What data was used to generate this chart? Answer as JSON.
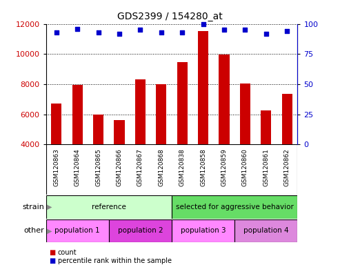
{
  "title": "GDS2399 / 154280_at",
  "samples": [
    "GSM120863",
    "GSM120864",
    "GSM120865",
    "GSM120866",
    "GSM120867",
    "GSM120868",
    "GSM120838",
    "GSM120858",
    "GSM120859",
    "GSM120860",
    "GSM120861",
    "GSM120862"
  ],
  "counts": [
    6700,
    7950,
    6000,
    5600,
    8300,
    8000,
    9450,
    11500,
    9950,
    8050,
    6250,
    7350
  ],
  "percentile_ranks": [
    93,
    96,
    93,
    92,
    95,
    93,
    93,
    100,
    95,
    95,
    92,
    94
  ],
  "ylim_left": [
    4000,
    12000
  ],
  "ylim_right": [
    0,
    100
  ],
  "yticks_left": [
    4000,
    6000,
    8000,
    10000,
    12000
  ],
  "yticks_right": [
    0,
    25,
    50,
    75,
    100
  ],
  "bar_color": "#cc0000",
  "dot_color": "#0000cc",
  "strain_groups": [
    {
      "label": "reference",
      "start": 0,
      "end": 6,
      "color": "#ccffcc"
    },
    {
      "label": "selected for aggressive behavior",
      "start": 6,
      "end": 12,
      "color": "#66dd66"
    }
  ],
  "other_groups": [
    {
      "label": "population 1",
      "start": 0,
      "end": 3,
      "color": "#ff88ff"
    },
    {
      "label": "population 2",
      "start": 3,
      "end": 6,
      "color": "#dd44dd"
    },
    {
      "label": "population 3",
      "start": 6,
      "end": 9,
      "color": "#ff88ff"
    },
    {
      "label": "population 4",
      "start": 9,
      "end": 12,
      "color": "#dd88dd"
    }
  ],
  "strain_label": "strain",
  "other_label": "other",
  "legend_count_label": "count",
  "legend_percentile_label": "percentile rank within the sample",
  "background_color": "#ffffff",
  "bar_width": 0.5,
  "xtick_bg": "#cccccc",
  "grid_linestyle": "dotted",
  "grid_linewidth": 0.8
}
